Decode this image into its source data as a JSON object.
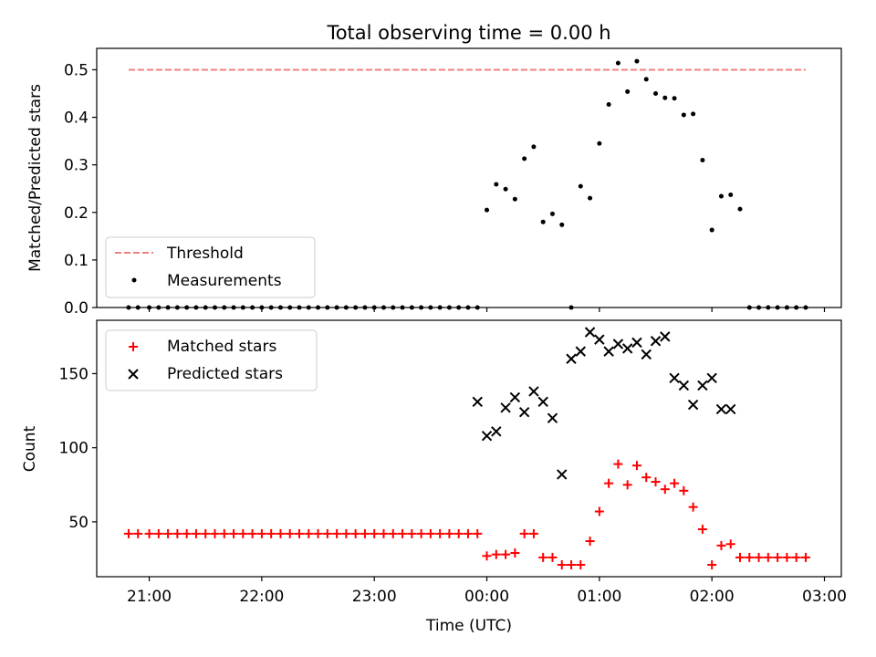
{
  "chart_data": [
    {
      "type": "scatter",
      "title": "Total observing time = 0.00 h",
      "ylabel": "Matched/Predicted stars",
      "ylim": [
        0,
        0.545
      ],
      "yticks": [
        0.0,
        0.1,
        0.2,
        0.3,
        0.4,
        0.5
      ],
      "ytick_labels": [
        "0.0",
        "0.1",
        "0.2",
        "0.3",
        "0.4",
        "0.5"
      ],
      "x_range": [
        "20:32",
        "03:09"
      ],
      "legend_position": "lower left",
      "grid": false,
      "threshold": {
        "name": "Threshold",
        "value": 0.5,
        "x_start": "20:49",
        "x_end": "02:50",
        "color": "#f08080",
        "style": "dashed"
      },
      "series": [
        {
          "name": "Measurements",
          "marker": "dot",
          "color": "#000000",
          "x": [
            "20:49",
            "20:54",
            "21:00",
            "21:05",
            "21:10",
            "21:15",
            "21:20",
            "21:25",
            "21:30",
            "21:35",
            "21:40",
            "21:45",
            "21:50",
            "21:55",
            "22:00",
            "22:05",
            "22:10",
            "22:15",
            "22:20",
            "22:25",
            "22:30",
            "22:35",
            "22:40",
            "22:45",
            "22:50",
            "22:55",
            "23:00",
            "23:05",
            "23:10",
            "23:15",
            "23:20",
            "23:25",
            "23:30",
            "23:35",
            "23:40",
            "23:45",
            "23:50",
            "23:55",
            "00:00",
            "00:05",
            "00:10",
            "00:15",
            "00:20",
            "00:25",
            "00:30",
            "00:35",
            "00:40",
            "00:45",
            "00:50",
            "00:55",
            "01:00",
            "01:05",
            "01:10",
            "01:15",
            "01:20",
            "01:25",
            "01:30",
            "01:35",
            "01:40",
            "01:45",
            "01:50",
            "01:55",
            "02:00",
            "02:05",
            "02:10",
            "02:15",
            "02:20",
            "02:25",
            "02:30",
            "02:35",
            "02:40",
            "02:45",
            "02:50"
          ],
          "y": [
            0,
            0,
            0,
            0,
            0,
            0,
            0,
            0,
            0,
            0,
            0,
            0,
            0,
            0,
            0,
            0,
            0,
            0,
            0,
            0,
            0,
            0,
            0,
            0,
            0,
            0,
            0,
            0,
            0,
            0,
            0,
            0,
            0,
            0,
            0,
            0,
            0,
            0,
            0.205,
            0.259,
            0.249,
            0.228,
            0.313,
            0.338,
            0.18,
            0.197,
            0.174,
            0,
            0.255,
            0.23,
            0.345,
            0.427,
            0.514,
            0.454,
            0.518,
            0.48,
            0.45,
            0.441,
            0.44,
            0.405,
            0.407,
            0.31,
            0.163,
            0.234,
            0.237,
            0.207,
            0,
            0,
            0,
            0,
            0,
            0,
            0
          ]
        }
      ]
    },
    {
      "type": "scatter",
      "xlabel": "Time (UTC)",
      "ylabel": "Count",
      "ylim": [
        13,
        186
      ],
      "yticks": [
        50,
        100,
        150
      ],
      "ytick_labels": [
        "50",
        "100",
        "150"
      ],
      "x_range": [
        "20:32",
        "03:09"
      ],
      "xticks": [
        "21:00",
        "22:00",
        "23:00",
        "00:00",
        "01:00",
        "02:00",
        "03:00"
      ],
      "legend_position": "upper left",
      "grid": false,
      "series": [
        {
          "name": "Matched stars",
          "marker": "plus",
          "color": "#ff0000",
          "x": [
            "20:49",
            "20:54",
            "21:00",
            "21:05",
            "21:10",
            "21:15",
            "21:20",
            "21:25",
            "21:30",
            "21:35",
            "21:40",
            "21:45",
            "21:50",
            "21:55",
            "22:00",
            "22:05",
            "22:10",
            "22:15",
            "22:20",
            "22:25",
            "22:30",
            "22:35",
            "22:40",
            "22:45",
            "22:50",
            "22:55",
            "23:00",
            "23:05",
            "23:10",
            "23:15",
            "23:20",
            "23:25",
            "23:30",
            "23:35",
            "23:40",
            "23:45",
            "23:50",
            "23:55",
            "00:00",
            "00:05",
            "00:10",
            "00:15",
            "00:20",
            "00:25",
            "00:30",
            "00:35",
            "00:40",
            "00:45",
            "00:50",
            "00:55",
            "01:00",
            "01:05",
            "01:10",
            "01:15",
            "01:20",
            "01:25",
            "01:30",
            "01:35",
            "01:40",
            "01:45",
            "01:50",
            "01:55",
            "02:00",
            "02:05",
            "02:10",
            "02:15",
            "02:20",
            "02:25",
            "02:30",
            "02:35",
            "02:40",
            "02:45",
            "02:50"
          ],
          "y": [
            42,
            42,
            42,
            42,
            42,
            42,
            42,
            42,
            42,
            42,
            42,
            42,
            42,
            42,
            42,
            42,
            42,
            42,
            42,
            42,
            42,
            42,
            42,
            42,
            42,
            42,
            42,
            42,
            42,
            42,
            42,
            42,
            42,
            42,
            42,
            42,
            42,
            42,
            27,
            28,
            28,
            29,
            42,
            42,
            26,
            26,
            21,
            21,
            21,
            37,
            57,
            76,
            89,
            75,
            88,
            80,
            77,
            72,
            76,
            71,
            60,
            45,
            21,
            34,
            35,
            26,
            26,
            26,
            26,
            26,
            26,
            26,
            26
          ]
        },
        {
          "name": "Predicted stars",
          "marker": "x",
          "color": "#000000",
          "x": [
            "23:55",
            "00:00",
            "00:05",
            "00:10",
            "00:15",
            "00:20",
            "00:25",
            "00:30",
            "00:35",
            "00:40",
            "00:45",
            "00:50",
            "00:55",
            "01:00",
            "01:05",
            "01:10",
            "01:15",
            "01:20",
            "01:25",
            "01:30",
            "01:35",
            "01:40",
            "01:45",
            "01:50",
            "01:55",
            "02:00",
            "02:05",
            "02:10"
          ],
          "y": [
            131,
            108,
            111,
            127,
            134,
            124,
            138,
            131,
            120,
            82,
            160,
            165,
            178,
            173,
            165,
            170,
            167,
            171,
            163,
            172,
            175,
            147,
            142,
            129,
            142,
            147,
            126,
            126
          ]
        }
      ]
    }
  ]
}
